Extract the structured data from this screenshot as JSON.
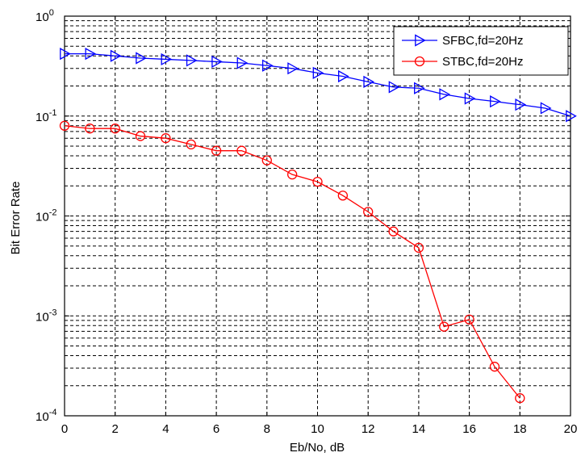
{
  "chart_data": {
    "type": "line",
    "xlabel": "Eb/No, dB",
    "ylabel": "Bit Error Rate",
    "xlim": [
      0,
      20
    ],
    "ylim": [
      0.0001,
      1
    ],
    "yscale": "log",
    "grid": true,
    "legend_position": "top-right",
    "x_ticks": [
      0,
      2,
      4,
      6,
      8,
      10,
      12,
      14,
      16,
      18,
      20
    ],
    "y_tick_labels": [
      {
        "base": "10",
        "exp": "0"
      },
      {
        "base": "10",
        "exp": "-1"
      },
      {
        "base": "10",
        "exp": "-2"
      },
      {
        "base": "10",
        "exp": "-3"
      },
      {
        "base": "10",
        "exp": "-4"
      }
    ],
    "series": [
      {
        "name": "SFBC,fd=20Hz",
        "color": "#0000ff",
        "marker": "triangle-right",
        "x": [
          0,
          1,
          2,
          3,
          4,
          5,
          6,
          7,
          8,
          9,
          10,
          11,
          12,
          13,
          14,
          15,
          16,
          17,
          18,
          19,
          20
        ],
        "y": [
          0.42,
          0.42,
          0.4,
          0.38,
          0.37,
          0.36,
          0.35,
          0.34,
          0.32,
          0.3,
          0.27,
          0.25,
          0.22,
          0.195,
          0.19,
          0.165,
          0.15,
          0.14,
          0.13,
          0.12,
          0.1
        ]
      },
      {
        "name": "STBC,fd=20Hz",
        "color": "#ff0000",
        "marker": "circle",
        "x": [
          0,
          1,
          2,
          3,
          4,
          5,
          6,
          7,
          8,
          9,
          10,
          11,
          12,
          13,
          14,
          15,
          16,
          17,
          18
        ],
        "y": [
          0.08,
          0.075,
          0.075,
          0.063,
          0.06,
          0.052,
          0.045,
          0.045,
          0.036,
          0.026,
          0.022,
          0.016,
          0.011,
          0.007,
          0.0048,
          0.00078,
          0.00092,
          0.00031,
          0.00015
        ]
      }
    ]
  }
}
